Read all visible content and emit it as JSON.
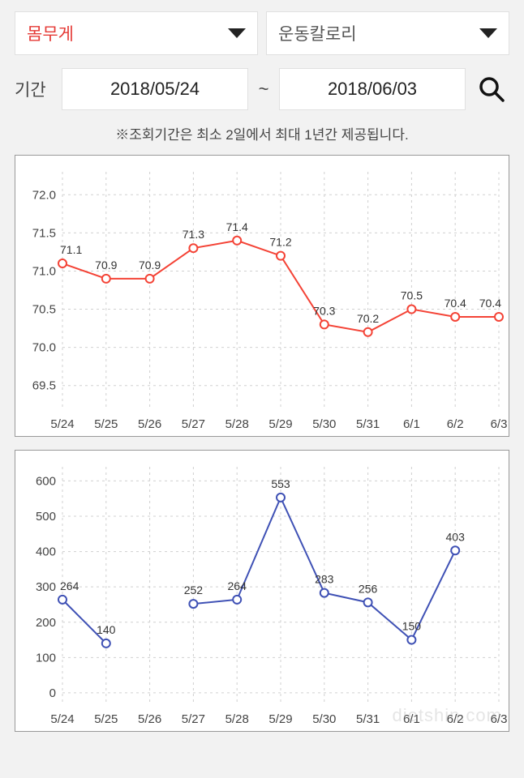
{
  "selectors": {
    "left": {
      "label": "몸무게"
    },
    "right": {
      "label": "운동칼로리"
    }
  },
  "dateRange": {
    "periodLabel": "기간",
    "start": "2018/05/24",
    "end": "2018/06/03",
    "tilde": "~"
  },
  "note": "※조회기간은 최소 2일에서 최대 1년간 제공됩니다.",
  "watermark": "dietshin.com",
  "colors": {
    "pageBg": "#f2f2f2",
    "boxBg": "#ffffff",
    "boxBorder": "#999999",
    "grid": "#d0d0d0",
    "axisText": "#444444",
    "weightLine": "#f44336",
    "weightMarkerFill": "#ffffff",
    "weightMarkerStroke": "#f44336",
    "calorieLine": "#3f51b5",
    "calorieMarkerFill": "#ffffff",
    "calorieMarkerStroke": "#3f51b5"
  },
  "weightChart": {
    "type": "line",
    "xLabels": [
      "5/24",
      "5/25",
      "5/26",
      "5/27",
      "5/28",
      "5/29",
      "5/30",
      "5/31",
      "6/1",
      "6/2",
      "6/3"
    ],
    "values": [
      71.1,
      70.9,
      70.9,
      71.3,
      71.4,
      71.2,
      70.3,
      70.2,
      70.5,
      70.4,
      70.4
    ],
    "yTicks": [
      69.5,
      70.0,
      70.5,
      71.0,
      71.5,
      72.0
    ],
    "yTickLabels": [
      "69.5",
      "70.0",
      "70.5",
      "71.0",
      "71.5",
      "72.0"
    ],
    "ylim": [
      69.2,
      72.3
    ],
    "markerRadius": 5,
    "lineWidth": 2,
    "labelFontSize": 14,
    "axisFontSize": 15
  },
  "calorieChart": {
    "type": "line",
    "xLabels": [
      "5/24",
      "5/25",
      "5/26",
      "5/27",
      "5/28",
      "5/29",
      "5/30",
      "5/31",
      "6/1",
      "6/2",
      "6/3"
    ],
    "values": [
      264,
      140,
      null,
      252,
      264,
      553,
      283,
      256,
      150,
      403,
      null
    ],
    "yTicks": [
      0,
      100,
      200,
      300,
      400,
      500,
      600
    ],
    "yTickLabels": [
      "0",
      "100",
      "200",
      "300",
      "400",
      "500",
      "600"
    ],
    "ylim": [
      -30,
      640
    ],
    "markerRadius": 5,
    "lineWidth": 2,
    "labelFontSize": 14,
    "axisFontSize": 15
  }
}
